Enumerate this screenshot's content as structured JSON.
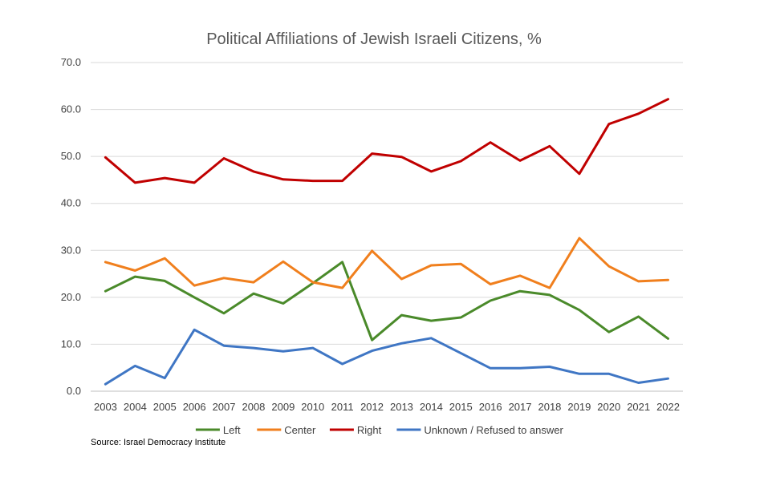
{
  "chart_data": {
    "type": "line",
    "title": "Political Affiliations of Jewish Israeli Citizens, %",
    "xlabel": "",
    "ylabel": "",
    "categories": [
      "2003",
      "2004",
      "2005",
      "2006",
      "2007",
      "2008",
      "2009",
      "2010",
      "2011",
      "2012",
      "2013",
      "2014",
      "2015",
      "2016",
      "2017",
      "2018",
      "2019",
      "2020",
      "2021",
      "2022"
    ],
    "ylim": [
      0,
      70
    ],
    "yticks": [
      "0.0",
      "10.0",
      "20.0",
      "30.0",
      "40.0",
      "50.0",
      "60.0",
      "70.0"
    ],
    "grid": true,
    "legend_position": "bottom",
    "series": [
      {
        "name": "Left",
        "color": "#4a8a2a",
        "values": [
          21.3,
          24.4,
          23.5,
          20.0,
          16.6,
          20.8,
          18.7,
          23.0,
          27.5,
          10.9,
          16.2,
          15.0,
          15.7,
          19.3,
          21.3,
          20.5,
          17.3,
          12.6,
          15.9,
          11.2
        ]
      },
      {
        "name": "Center",
        "color": "#f07f1d",
        "values": [
          27.5,
          25.7,
          28.3,
          22.5,
          24.1,
          23.2,
          27.6,
          23.2,
          22.0,
          29.9,
          23.9,
          26.8,
          27.1,
          22.8,
          24.6,
          22.0,
          32.6,
          26.6,
          23.4,
          23.7
        ]
      },
      {
        "name": "Right",
        "color": "#c00000",
        "values": [
          49.8,
          44.4,
          45.4,
          44.4,
          49.6,
          46.8,
          45.1,
          44.8,
          44.8,
          50.6,
          49.9,
          46.8,
          49.0,
          53.0,
          49.1,
          52.2,
          46.3,
          56.9,
          59.1,
          62.2
        ]
      },
      {
        "name": "Unknown / Refused to answer",
        "color": "#3f76c4",
        "values": [
          1.5,
          5.4,
          2.8,
          13.1,
          9.7,
          9.2,
          8.5,
          9.2,
          5.8,
          8.6,
          10.2,
          11.3,
          8.1,
          4.9,
          4.9,
          5.2,
          3.7,
          3.7,
          1.8,
          2.7
        ]
      }
    ],
    "source": "Source: Israel Democracy Institute"
  }
}
